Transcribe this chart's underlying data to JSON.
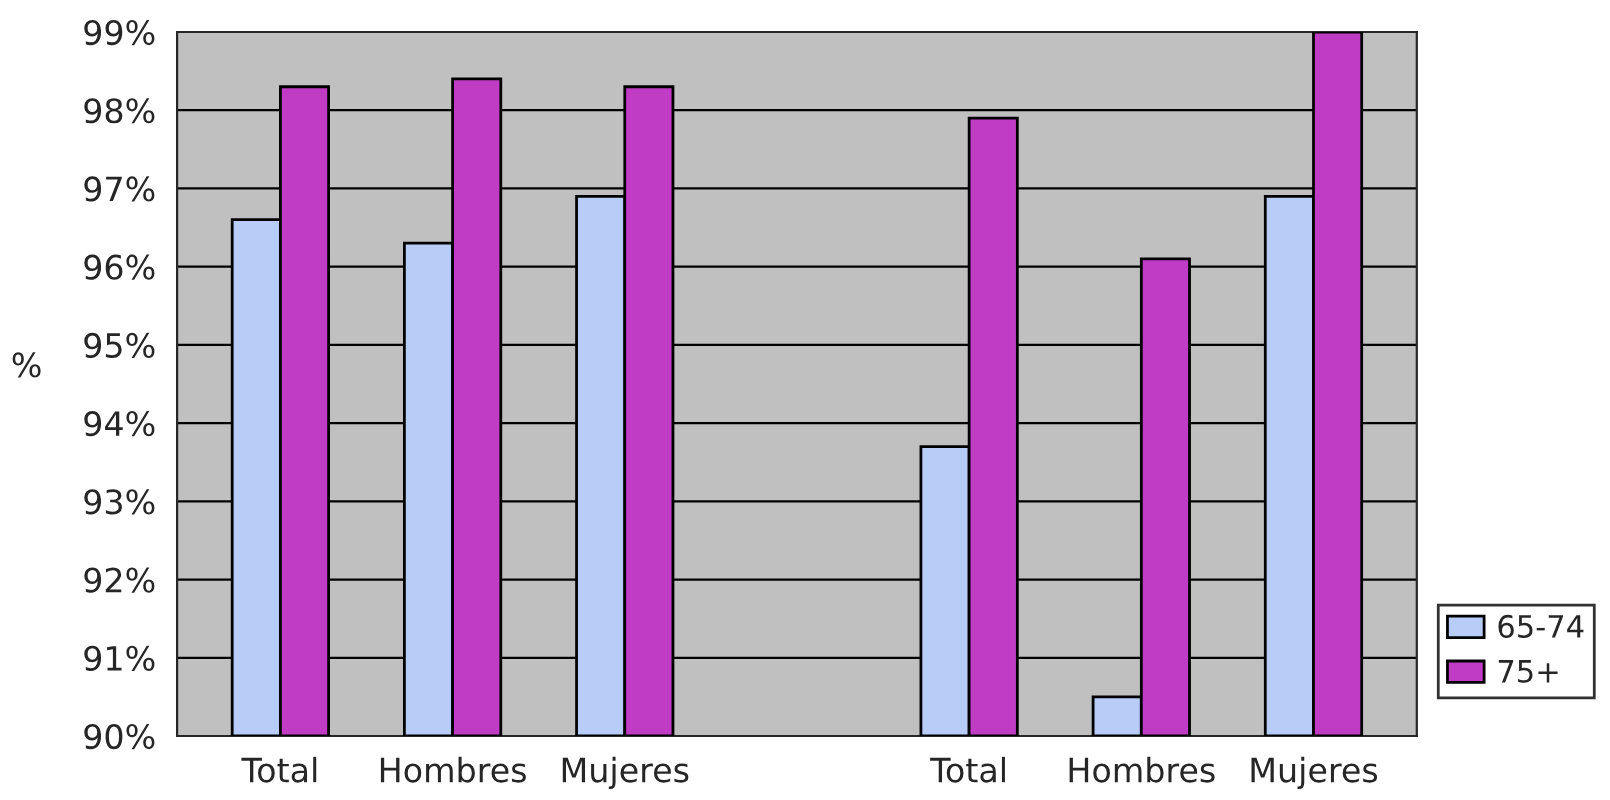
{
  "chart_data": {
    "type": "bar",
    "ylabel": "%",
    "categories": [
      "Total",
      "Hombres",
      "Mujeres",
      null,
      "Total",
      "Hombres",
      "Mujeres"
    ],
    "series": [
      {
        "name": "65-74",
        "color": "#b8ccf8",
        "values": [
          96.6,
          96.3,
          96.9,
          null,
          93.7,
          90.5,
          96.9
        ]
      },
      {
        "name": "75+",
        "color": "#c03cc4",
        "values": [
          98.3,
          98.4,
          98.3,
          null,
          97.9,
          96.1,
          99.0
        ]
      }
    ],
    "ylim": [
      90,
      99
    ],
    "yticks": [
      {
        "value": 90,
        "label": "90%"
      },
      {
        "value": 91,
        "label": "91%"
      },
      {
        "value": 92,
        "label": "92%"
      },
      {
        "value": 93,
        "label": "93%"
      },
      {
        "value": 94,
        "label": "94%"
      },
      {
        "value": 95,
        "label": "95%"
      },
      {
        "value": 96,
        "label": "96%"
      },
      {
        "value": 97,
        "label": "97%"
      },
      {
        "value": 98,
        "label": "98%"
      },
      {
        "value": 99,
        "label": "99%"
      }
    ],
    "grid": "y",
    "legend": "right"
  }
}
